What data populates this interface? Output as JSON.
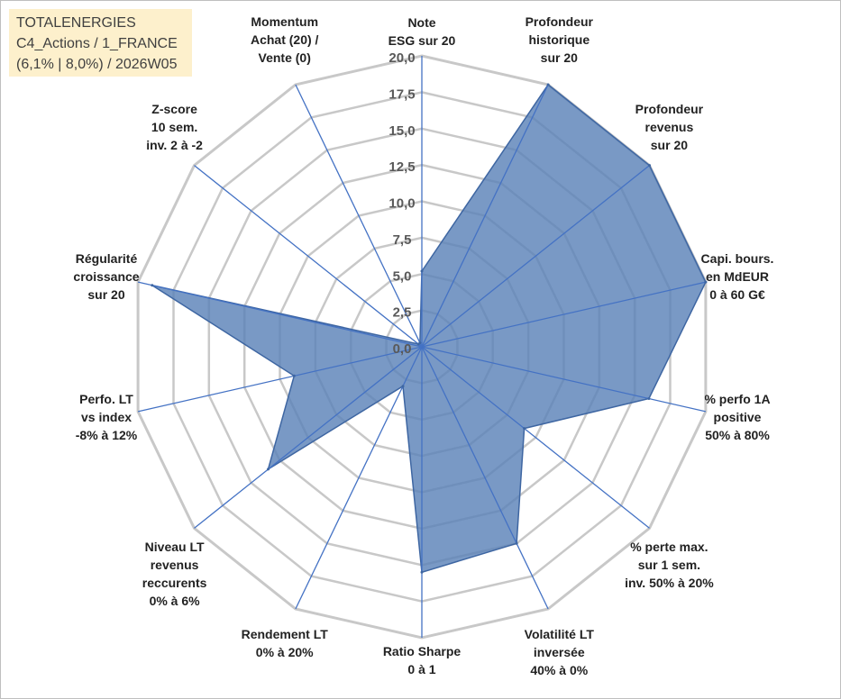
{
  "info_box": {
    "line1": "TOTALENERGIES",
    "line2": "C4_Actions / 1_FRANCE",
    "line3": "(6,1% | 8,0%) / 2026W05"
  },
  "chart_data": {
    "type": "radar",
    "rmin": 0,
    "rmax": 20,
    "grid": true,
    "legend": "none",
    "tick_labels": [
      "0,0",
      "2,5",
      "5,0",
      "7,5",
      "10,0",
      "12,5",
      "15,0",
      "17,5",
      "20,0"
    ],
    "categories": [
      [
        "Note",
        "ESG sur 20"
      ],
      [
        "Profondeur",
        "historique",
        "sur 20"
      ],
      [
        "Profondeur",
        "revenus",
        "sur 20"
      ],
      [
        "Capi. bours.",
        "en MdEUR",
        "0 à 60 G€"
      ],
      [
        "% perfo 1A",
        "positive",
        "50% à 80%"
      ],
      [
        "% perte max.",
        "sur 1 sem.",
        "inv. 50% à 20%"
      ],
      [
        "Volatilité LT",
        "inversée",
        "40% à 0%"
      ],
      [
        "Ratio Sharpe",
        "0 à 1"
      ],
      [
        "Rendement LT",
        "0% à 20%"
      ],
      [
        "Niveau LT",
        "revenus",
        "reccurents",
        "0% à 6%"
      ],
      [
        "Perfo. LT",
        "vs index",
        "-8% à 12%"
      ],
      [
        "Régularité",
        "croissance",
        "sur 20"
      ],
      [
        "Z-score",
        "10 sem.",
        "inv. 2 à -2"
      ],
      [
        "Momentum",
        "Achat (20) /",
        "Vente (0)"
      ]
    ],
    "series": [
      {
        "values": [
          5.2,
          20.0,
          20.0,
          20.0,
          16.0,
          9.0,
          15.0,
          15.5,
          3.0,
          13.5,
          9.0,
          19.0,
          0.3,
          0.3
        ]
      }
    ],
    "colors": {
      "fill": "#5b83b8",
      "stroke": "#3e66a2",
      "grid": "#c8c8c8",
      "axis": "#4472c4"
    }
  }
}
